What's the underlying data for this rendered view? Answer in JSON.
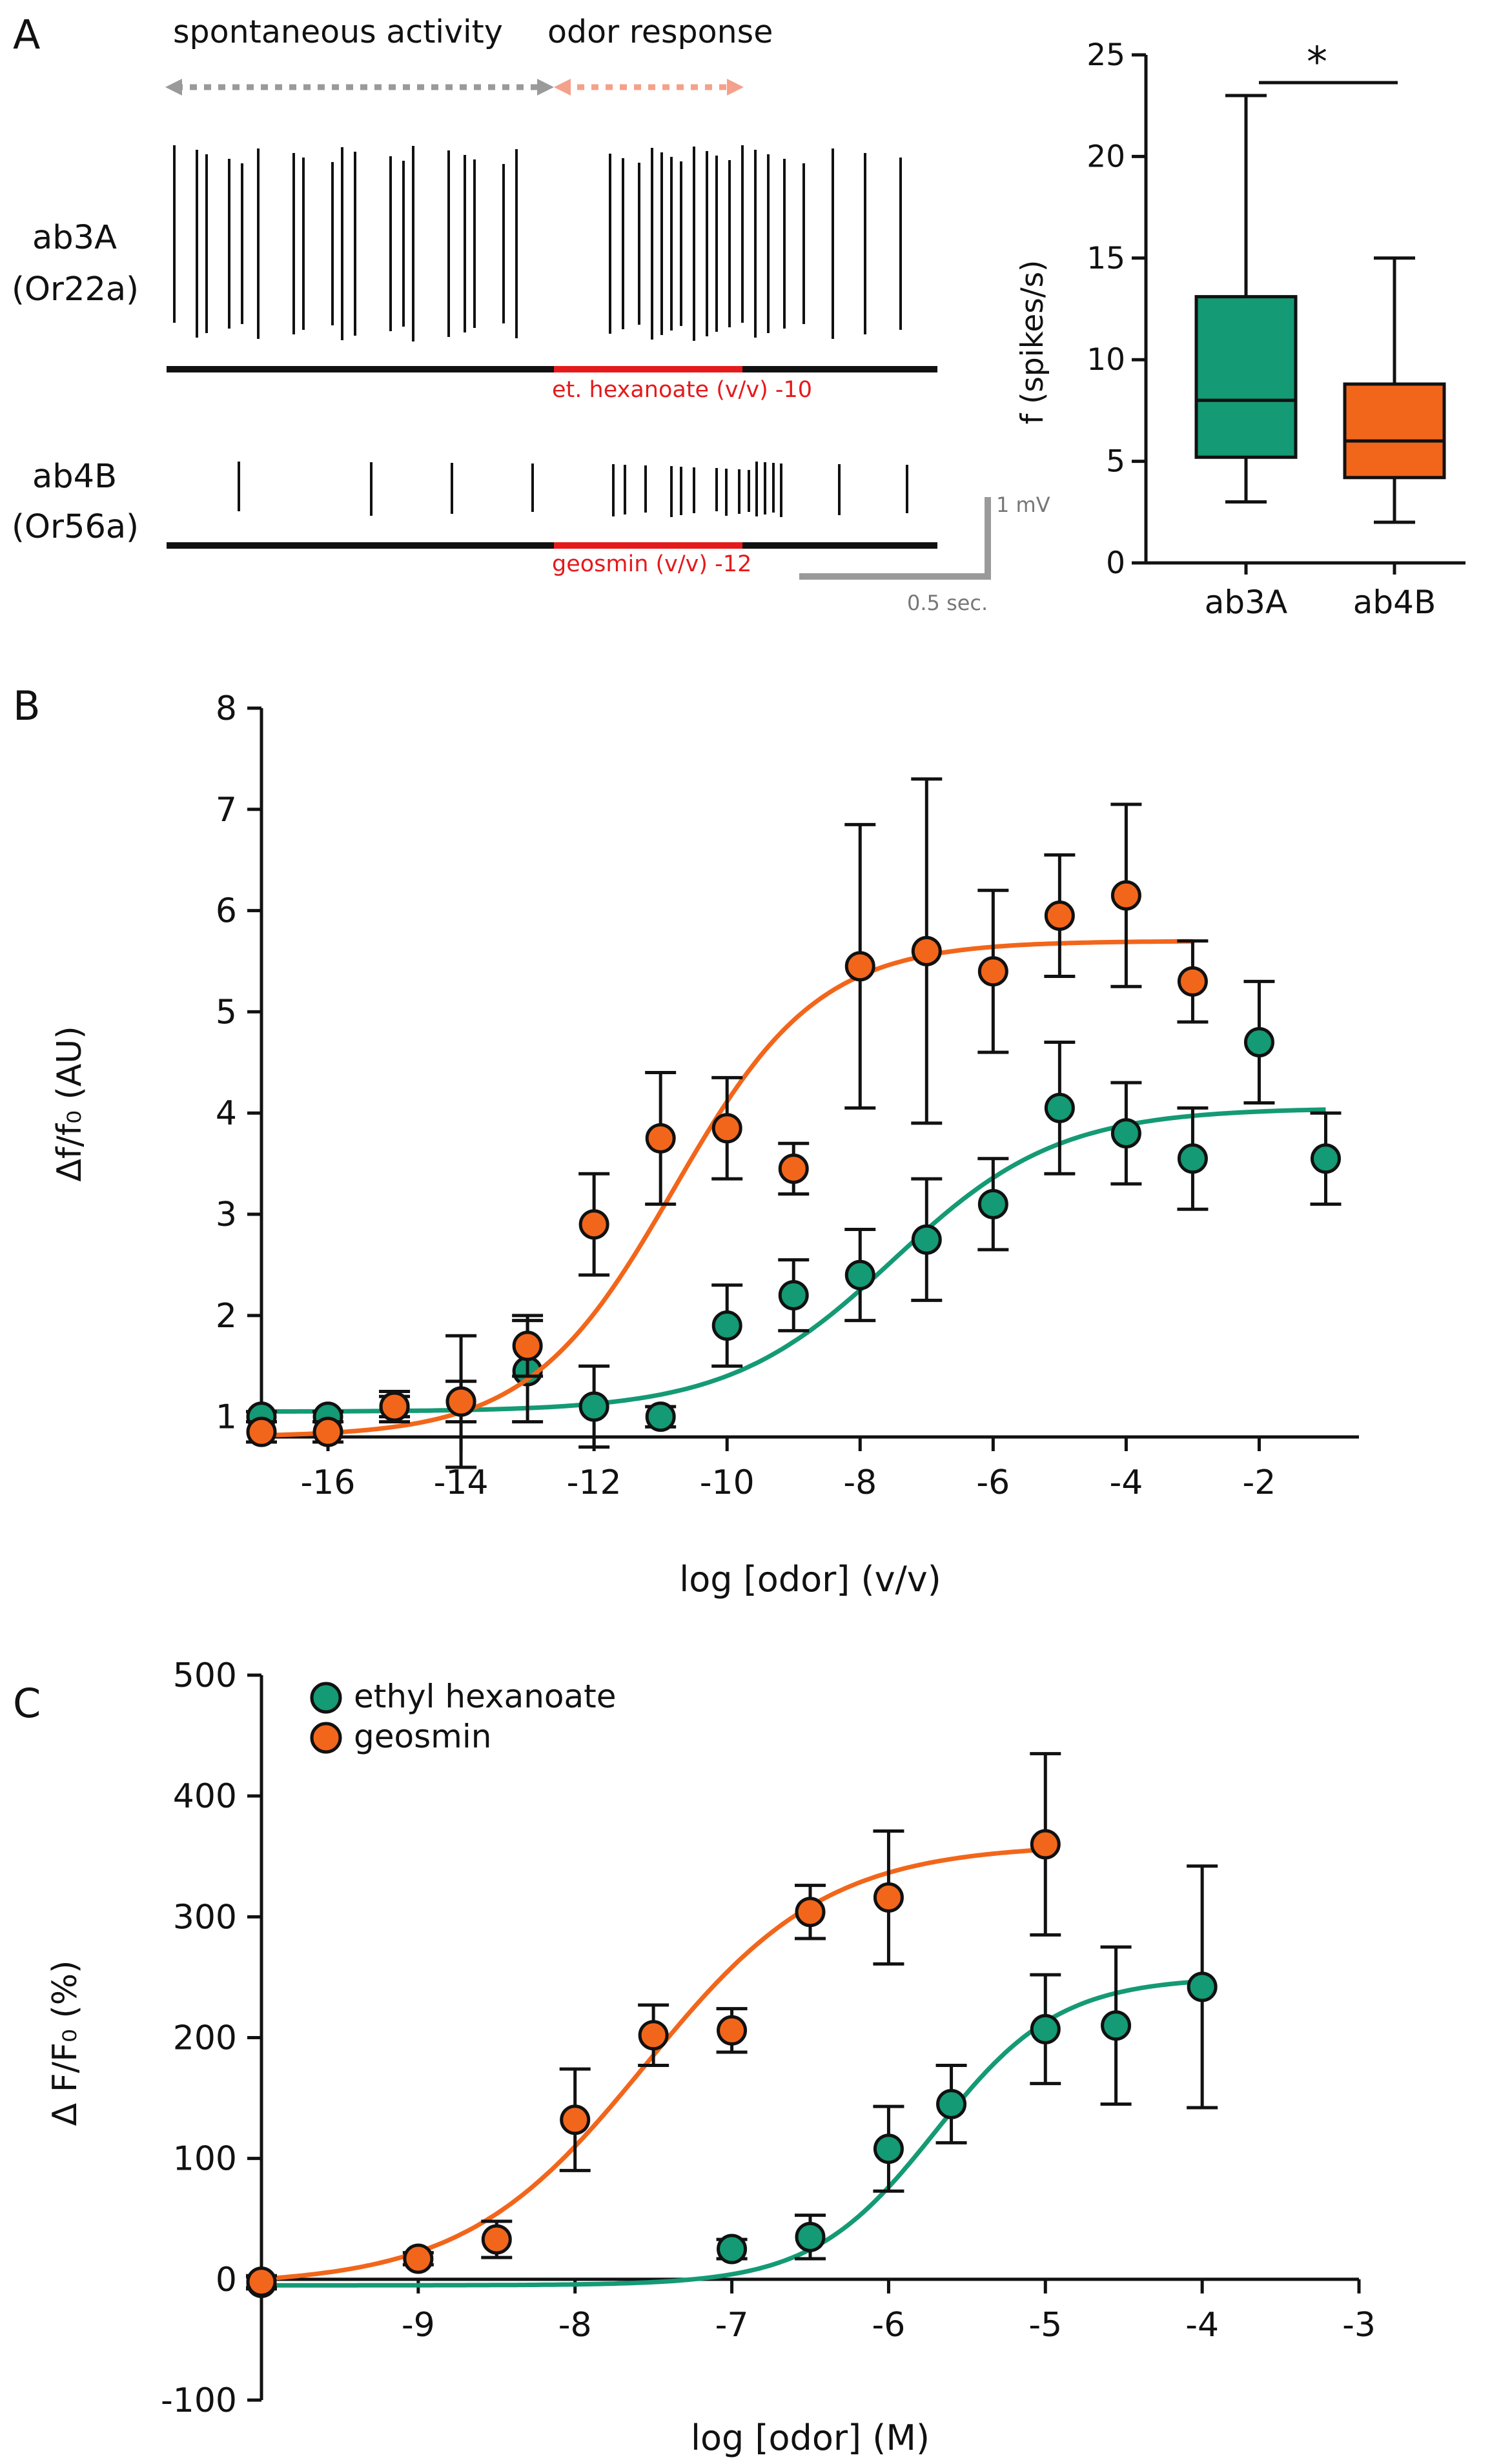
{
  "colors": {
    "green": "#149a74",
    "orange": "#f2661b",
    "red": "#e41a1c",
    "black": "#111111",
    "gray": "#9a9a9a",
    "salmon": "#f5a08a"
  },
  "panels": {
    "a": "A",
    "b": "B",
    "c": "C"
  },
  "panelA": {
    "spontaneous_label": "spontaneous activity",
    "odor_label": "odor response",
    "row1": {
      "name": "ab3A",
      "receptor": "(Or22a)",
      "stimulus": "et. hexanoate (v/v) -10"
    },
    "row2": {
      "name": "ab4B",
      "receptor": "(Or56a)",
      "stimulus": "geosmin (v/v) -12"
    },
    "scale_v": "1 mV",
    "scale_t": "0.5 sec."
  },
  "chart_data": [
    {
      "id": "A-box",
      "type": "box",
      "ylabel": "f (spikes/s)",
      "ylim": [
        0,
        25
      ],
      "yticks": [
        0,
        5,
        10,
        15,
        20,
        25
      ],
      "significance": "*",
      "groups": [
        {
          "name": "ab3A",
          "min": 3,
          "q1": 5.2,
          "median": 8,
          "q3": 13.1,
          "max": 23
        },
        {
          "name": "ab4B",
          "min": 2,
          "q1": 4.2,
          "median": 6,
          "q3": 8.8,
          "max": 15
        }
      ]
    },
    {
      "id": "B",
      "type": "scatter",
      "xlabel": "log [odor] (v/v)",
      "ylabel": "Δf/f₀ (AU)",
      "xlim": [
        -17,
        -0.5
      ],
      "ylim": [
        0.8,
        8
      ],
      "xticks": [
        -16,
        -14,
        -12,
        -10,
        -8,
        -6,
        -4,
        -2
      ],
      "yticks": [
        1,
        2,
        3,
        4,
        5,
        6,
        7,
        8
      ],
      "series": [
        {
          "name": "ethyl hexanoate",
          "color": "green",
          "x": [
            -17,
            -16,
            -15,
            -14,
            -13,
            -12,
            -11,
            -10,
            -9,
            -8,
            -7,
            -6,
            -5,
            -4,
            -3,
            -2,
            -1
          ],
          "y": [
            1.0,
            1.0,
            1.1,
            1.15,
            1.45,
            1.1,
            1.0,
            1.9,
            2.2,
            2.4,
            2.75,
            3.1,
            4.05,
            3.8,
            3.55,
            4.7,
            3.55
          ],
          "err": [
            0.05,
            0.05,
            0.1,
            0.2,
            0.5,
            0.4,
            0.1,
            0.4,
            0.35,
            0.45,
            0.6,
            0.45,
            0.65,
            0.5,
            0.5,
            0.6,
            0.45
          ],
          "fit": {
            "bottom": 1.05,
            "top": 4.05,
            "logEC50": -7.5,
            "hill": 0.35,
            "range": [
              -17,
              -1
            ]
          }
        },
        {
          "name": "geosmin",
          "color": "orange",
          "x": [
            -17,
            -16,
            -15,
            -14,
            -13,
            -12,
            -11,
            -10,
            -9,
            -8,
            -7,
            -6,
            -5,
            -4,
            -3
          ],
          "y": [
            0.85,
            0.85,
            1.1,
            1.15,
            1.7,
            2.9,
            3.75,
            3.85,
            3.45,
            5.45,
            5.6,
            5.4,
            5.95,
            6.15,
            5.3
          ],
          "err": [
            0.1,
            0.1,
            0.15,
            0.65,
            0.3,
            0.5,
            0.65,
            0.5,
            0.25,
            1.4,
            1.7,
            0.8,
            0.6,
            0.9,
            0.4
          ],
          "fit": {
            "bottom": 0.8,
            "top": 5.7,
            "logEC50": -10.8,
            "hill": 0.4,
            "range": [
              -17,
              -3
            ]
          }
        }
      ]
    },
    {
      "id": "C",
      "type": "scatter",
      "xlabel": "log [odor] (M)",
      "ylabel": "Δ F/F₀ (%)",
      "xlim": [
        -10,
        -3
      ],
      "ylim": [
        -100,
        500
      ],
      "xticks": [
        -9,
        -8,
        -7,
        -6,
        -5,
        -4,
        -3
      ],
      "yticks": [
        -100,
        0,
        100,
        200,
        300,
        400,
        500
      ],
      "legend": "top-left",
      "series": [
        {
          "name": "ethyl hexanoate",
          "color": "green",
          "x": [
            -10,
            -7,
            -6.5,
            -6,
            -5.6,
            -5,
            -4.55,
            -4
          ],
          "y": [
            -3,
            25,
            35,
            108,
            145,
            207,
            210,
            242
          ],
          "err": [
            5,
            8,
            18,
            35,
            32,
            45,
            65,
            100
          ],
          "fit": {
            "bottom": -5,
            "top": 250,
            "logEC50": -5.7,
            "hill": 1.1,
            "range": [
              -10,
              -4
            ]
          }
        },
        {
          "name": "geosmin",
          "color": "orange",
          "x": [
            -10,
            -9,
            -8.5,
            -8,
            -7.5,
            -7,
            -6.5,
            -6,
            -5
          ],
          "y": [
            -2,
            17,
            33,
            132,
            202,
            206,
            304,
            316,
            360
          ],
          "err": [
            5,
            5,
            15,
            42,
            25,
            18,
            22,
            55,
            75
          ],
          "fit": {
            "bottom": -5,
            "top": 360,
            "logEC50": -7.55,
            "hill": 0.75,
            "range": [
              -10,
              -5
            ]
          }
        }
      ]
    }
  ]
}
